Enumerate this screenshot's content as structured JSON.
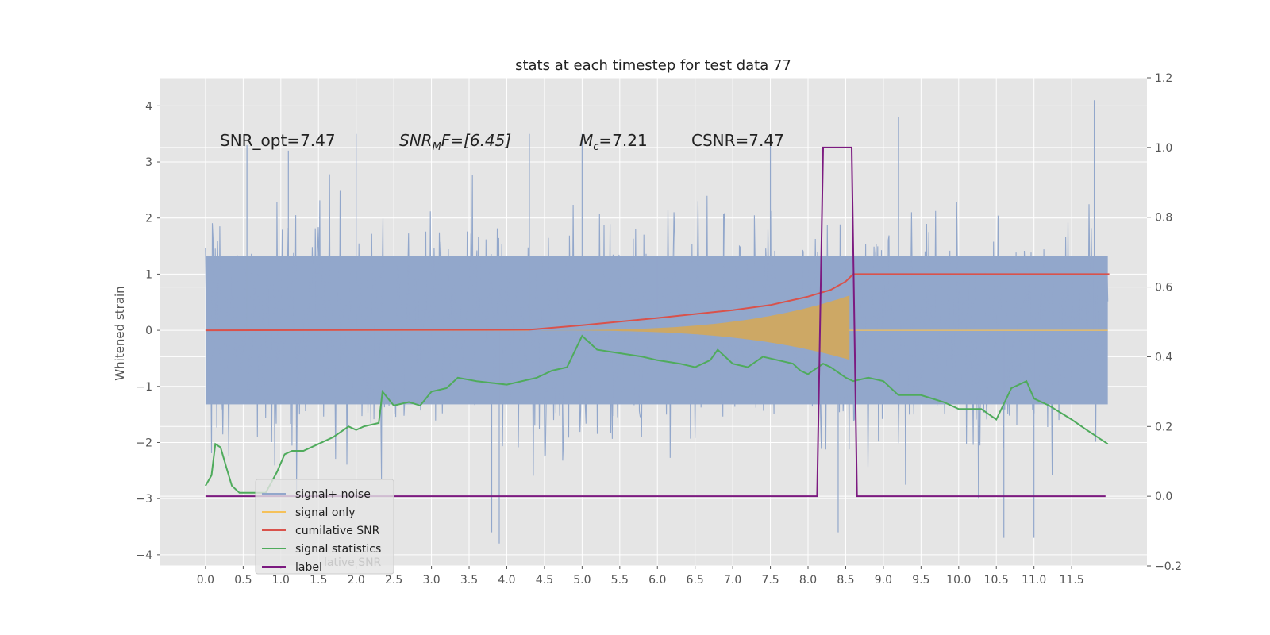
{
  "chart_data": {
    "type": "line",
    "title": "stats at each timestep for test data 77",
    "xlabel": "",
    "ylabel": "Whitened strain",
    "y2label": "",
    "xlim": [
      -0.6,
      12.5
    ],
    "ylim": [
      -4.2,
      4.5
    ],
    "y2lim": [
      -0.2,
      1.2
    ],
    "grid": true,
    "x_ticks": [
      "0.0",
      "0.5",
      "1.0",
      "1.5",
      "2.0",
      "2.5",
      "3.0",
      "3.5",
      "4.0",
      "4.5",
      "5.0",
      "5.5",
      "6.0",
      "6.5",
      "7.0",
      "7.5",
      "8.0",
      "8.5",
      "9.0",
      "9.5",
      "10.0",
      "10.5",
      "11.0",
      "11.5"
    ],
    "y_ticks": [
      "4",
      "3",
      "2",
      "1",
      "0",
      "−1",
      "−2",
      "−3",
      "−4"
    ],
    "y2_ticks": [
      "1.2",
      "1.0",
      "0.8",
      "0.6",
      "0.4",
      "0.2",
      "0.0",
      "−0.2"
    ],
    "annotations": {
      "snr_opt": "SNR_opt=7.47",
      "snr_mf_main": "SNR",
      "snr_mf_sub": "M",
      "snr_mf_rest": "F=[6.45]",
      "mc_main": "M",
      "mc_sub": "c",
      "mc_rest": "=7.21",
      "csnr": "CSNR=7.47"
    },
    "legend": {
      "position": "lower-left",
      "entries": [
        "signal+ noise",
        "signal only",
        "cumilative SNR",
        "signal statistics",
        "label"
      ],
      "ghost_text": "lative SNR"
    },
    "series": [
      {
        "name": "signal+ noise",
        "axis": "left",
        "color": "#92a7cb",
        "x_range": [
          0.0,
          11.98
        ],
        "typical_band": [
          -2.4,
          2.4
        ],
        "spikes": [
          [
            0.55,
            3.3
          ],
          [
            1.1,
            3.2
          ],
          [
            2.0,
            3.5
          ],
          [
            3.8,
            -3.6
          ],
          [
            3.9,
            -3.8
          ],
          [
            4.3,
            3.5
          ],
          [
            5.0,
            3.5
          ],
          [
            6.0,
            1.3
          ],
          [
            7.5,
            3.4
          ],
          [
            8.4,
            -3.6
          ],
          [
            9.2,
            3.8
          ],
          [
            10.6,
            -3.7
          ],
          [
            11.0,
            -3.7
          ],
          [
            11.8,
            4.1
          ]
        ]
      },
      {
        "name": "signal only",
        "axis": "left",
        "color": "#f5c15a",
        "chirp_start": 4.3,
        "chirp_peak": 8.55,
        "peak_amplitude": 0.6
      },
      {
        "name": "cumilative SNR",
        "axis": "left",
        "color": "#d9524b",
        "x": [
          0.0,
          4.3,
          5.0,
          6.0,
          7.0,
          7.5,
          8.0,
          8.3,
          8.5,
          8.6,
          12.0
        ],
        "y": [
          0.0,
          0.01,
          0.09,
          0.22,
          0.36,
          0.45,
          0.6,
          0.72,
          0.87,
          1.0,
          1.0
        ]
      },
      {
        "name": "signal statistics",
        "axis": "right",
        "color": "#4fab5c",
        "x": [
          0.0,
          0.08,
          0.13,
          0.2,
          0.28,
          0.35,
          0.45,
          0.6,
          0.8,
          0.95,
          1.05,
          1.15,
          1.3,
          1.5,
          1.7,
          1.9,
          2.0,
          2.1,
          2.3,
          2.35,
          2.5,
          2.7,
          2.85,
          3.0,
          3.2,
          3.35,
          3.6,
          4.0,
          4.4,
          4.6,
          4.8,
          5.0,
          5.2,
          5.5,
          5.8,
          6.0,
          6.3,
          6.5,
          6.7,
          6.8,
          7.0,
          7.2,
          7.4,
          7.6,
          7.8,
          7.9,
          8.0,
          8.2,
          8.3,
          8.5,
          8.6,
          8.8,
          9.0,
          9.2,
          9.5,
          9.8,
          10.0,
          10.3,
          10.5,
          10.7,
          10.9,
          11.0,
          11.2,
          11.5,
          11.7,
          11.98
        ],
        "y": [
          0.03,
          0.06,
          0.15,
          0.14,
          0.08,
          0.03,
          0.01,
          0.01,
          0.01,
          0.07,
          0.12,
          0.13,
          0.13,
          0.15,
          0.17,
          0.2,
          0.19,
          0.2,
          0.21,
          0.3,
          0.26,
          0.27,
          0.26,
          0.3,
          0.31,
          0.34,
          0.33,
          0.32,
          0.34,
          0.36,
          0.37,
          0.46,
          0.42,
          0.41,
          0.4,
          0.39,
          0.38,
          0.37,
          0.39,
          0.42,
          0.38,
          0.37,
          0.4,
          0.39,
          0.38,
          0.36,
          0.35,
          0.38,
          0.37,
          0.34,
          0.33,
          0.34,
          0.33,
          0.29,
          0.29,
          0.27,
          0.25,
          0.25,
          0.22,
          0.31,
          0.33,
          0.28,
          0.26,
          0.22,
          0.19,
          0.15
        ]
      },
      {
        "name": "label",
        "axis": "right",
        "color": "#7c1a80",
        "x": [
          0.0,
          8.12,
          8.2,
          8.58,
          8.65,
          11.95
        ],
        "y": [
          0.0,
          0.0,
          1.0,
          1.0,
          0.0,
          0.0
        ]
      }
    ]
  }
}
